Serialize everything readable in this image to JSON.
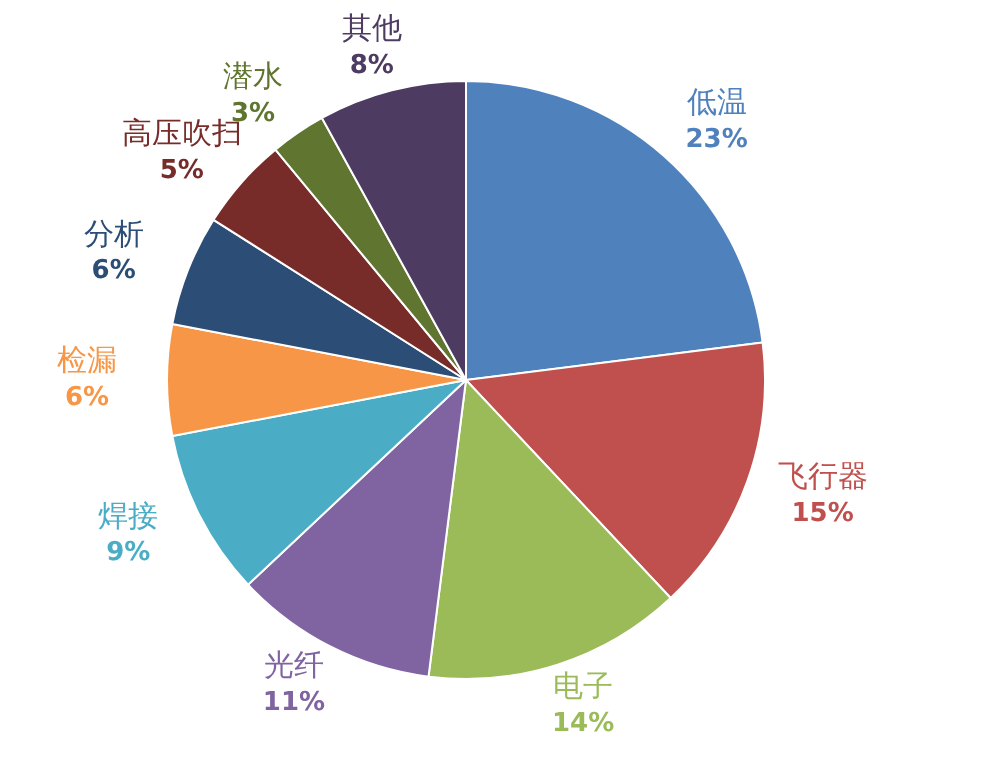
{
  "chart_data": {
    "type": "pie",
    "categories": [
      "低温",
      "飞行器",
      "电子",
      "光纤",
      "焊接",
      "检漏",
      "分析",
      "高压吹扫",
      "潜水",
      "其他"
    ],
    "values": [
      23,
      15,
      14,
      11,
      9,
      6,
      6,
      5,
      3,
      8
    ],
    "value_labels": [
      "23%",
      "15%",
      "14%",
      "11%",
      "9%",
      "6%",
      "6%",
      "5%",
      "3%",
      "8%"
    ],
    "colors": [
      "#4f81bd",
      "#c0504d",
      "#9bbb59",
      "#8064a2",
      "#4bacc6",
      "#f79646",
      "#2c4d75",
      "#772c2a",
      "#5f7530",
      "#4d3b62"
    ],
    "legend": false
  }
}
